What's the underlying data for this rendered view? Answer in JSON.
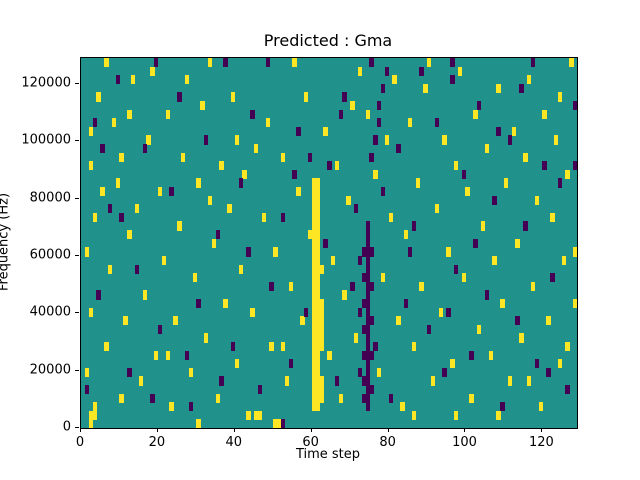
{
  "chart_data": {
    "type": "heatmap",
    "title": "Predicted : Gma",
    "xlabel": "Time step",
    "ylabel": "Frequency (Hz)",
    "x_range": [
      0,
      129
    ],
    "y_range": [
      0,
      129000
    ],
    "x_ticks": [
      0,
      20,
      40,
      60,
      80,
      100,
      120
    ],
    "y_ticks": [
      0,
      20000,
      40000,
      60000,
      80000,
      100000,
      120000
    ],
    "grid": {
      "x_steps": 129,
      "freq_bins": 43,
      "bin_hz": 3000,
      "gridlines": "off"
    },
    "legend": "none",
    "colors": {
      "background": "#21918c",
      "positive": "#fde725",
      "negative": "#440154"
    },
    "yellow_cells": [
      [
        2,
        0
      ],
      [
        2,
        1
      ],
      [
        3,
        1
      ],
      [
        3,
        2
      ],
      [
        1,
        6
      ],
      [
        2,
        13
      ],
      [
        1,
        20
      ],
      [
        3,
        24
      ],
      [
        2,
        30
      ],
      [
        2,
        34
      ],
      [
        4,
        38
      ],
      [
        6,
        42
      ],
      [
        8,
        35
      ],
      [
        9,
        28
      ],
      [
        7,
        18
      ],
      [
        6,
        9
      ],
      [
        10,
        3
      ],
      [
        11,
        12
      ],
      [
        12,
        22
      ],
      [
        10,
        31
      ],
      [
        13,
        40
      ],
      [
        15,
        5
      ],
      [
        16,
        15
      ],
      [
        14,
        25
      ],
      [
        17,
        33
      ],
      [
        18,
        41
      ],
      [
        19,
        8
      ],
      [
        21,
        19
      ],
      [
        20,
        27
      ],
      [
        22,
        36
      ],
      [
        23,
        2
      ],
      [
        24,
        12
      ],
      [
        25,
        23
      ],
      [
        26,
        31
      ],
      [
        27,
        40
      ],
      [
        28,
        6
      ],
      [
        29,
        17
      ],
      [
        30,
        28
      ],
      [
        31,
        37
      ],
      [
        33,
        42
      ],
      [
        32,
        10
      ],
      [
        34,
        21
      ],
      [
        35,
        3
      ],
      [
        36,
        30
      ],
      [
        37,
        14
      ],
      [
        38,
        25
      ],
      [
        39,
        38
      ],
      [
        40,
        7
      ],
      [
        41,
        18
      ],
      [
        42,
        29
      ],
      [
        43,
        1
      ],
      [
        44,
        13
      ],
      [
        45,
        1
      ],
      [
        46,
        1
      ],
      [
        47,
        24
      ],
      [
        48,
        35
      ],
      [
        49,
        9
      ],
      [
        50,
        0
      ],
      [
        51,
        0
      ],
      [
        50,
        20
      ],
      [
        52,
        31
      ],
      [
        53,
        5
      ],
      [
        54,
        16
      ],
      [
        55,
        42
      ],
      [
        56,
        27
      ],
      [
        57,
        12
      ],
      [
        58,
        38
      ],
      [
        59,
        22
      ],
      [
        63,
        34
      ],
      [
        64,
        8
      ],
      [
        65,
        19
      ],
      [
        66,
        30
      ],
      [
        67,
        3
      ],
      [
        68,
        15
      ],
      [
        69,
        26
      ],
      [
        70,
        37
      ],
      [
        71,
        10
      ],
      [
        72,
        41
      ],
      [
        76,
        29
      ],
      [
        77,
        6
      ],
      [
        78,
        17
      ],
      [
        79,
        33
      ],
      [
        80,
        24
      ],
      [
        81,
        40
      ],
      [
        82,
        12
      ],
      [
        83,
        2
      ],
      [
        84,
        22
      ],
      [
        85,
        35
      ],
      [
        86,
        9
      ],
      [
        87,
        28
      ],
      [
        88,
        16
      ],
      [
        89,
        39
      ],
      [
        90,
        42
      ],
      [
        91,
        5
      ],
      [
        92,
        25
      ],
      [
        93,
        13
      ],
      [
        94,
        33
      ],
      [
        95,
        20
      ],
      [
        96,
        7
      ],
      [
        97,
        30
      ],
      [
        98,
        41
      ],
      [
        99,
        17
      ],
      [
        100,
        27
      ],
      [
        101,
        3
      ],
      [
        102,
        36
      ],
      [
        103,
        11
      ],
      [
        104,
        23
      ],
      [
        105,
        32
      ],
      [
        106,
        8
      ],
      [
        107,
        19
      ],
      [
        108,
        39
      ],
      [
        109,
        14
      ],
      [
        110,
        28
      ],
      [
        111,
        5
      ],
      [
        112,
        34
      ],
      [
        113,
        21
      ],
      [
        114,
        10
      ],
      [
        115,
        31
      ],
      [
        116,
        40
      ],
      [
        117,
        16
      ],
      [
        118,
        26
      ],
      [
        119,
        2
      ],
      [
        120,
        36
      ],
      [
        121,
        12
      ],
      [
        122,
        24
      ],
      [
        123,
        33
      ],
      [
        124,
        7
      ],
      [
        125,
        19
      ],
      [
        126,
        29
      ],
      [
        127,
        42
      ],
      [
        128,
        14
      ],
      [
        126,
        9
      ],
      [
        124,
        38
      ],
      [
        5,
        27
      ],
      [
        45,
        32
      ],
      [
        33,
        26
      ],
      [
        62,
        18
      ],
      [
        74,
        36
      ],
      [
        128,
        20
      ],
      [
        116,
        5
      ],
      [
        108,
        1
      ],
      [
        86,
        1
      ],
      [
        97,
        1
      ],
      [
        30,
        0
      ],
      [
        22,
        8
      ],
      [
        12,
        36
      ],
      [
        52,
        9
      ],
      [
        40,
        33
      ]
    ],
    "dark_cells": [
      [
        1,
        4
      ],
      [
        4,
        15
      ],
      [
        3,
        35
      ],
      [
        7,
        25
      ],
      [
        9,
        40
      ],
      [
        12,
        6
      ],
      [
        14,
        18
      ],
      [
        16,
        32
      ],
      [
        19,
        42
      ],
      [
        20,
        11
      ],
      [
        23,
        27
      ],
      [
        25,
        38
      ],
      [
        28,
        2
      ],
      [
        30,
        14
      ],
      [
        32,
        33
      ],
      [
        35,
        22
      ],
      [
        37,
        42
      ],
      [
        39,
        9
      ],
      [
        41,
        28
      ],
      [
        44,
        36
      ],
      [
        46,
        4
      ],
      [
        48,
        42
      ],
      [
        49,
        16
      ],
      [
        52,
        24
      ],
      [
        54,
        7
      ],
      [
        56,
        34
      ],
      [
        58,
        13
      ],
      [
        63,
        21
      ],
      [
        64,
        30
      ],
      [
        66,
        5
      ],
      [
        68,
        38
      ],
      [
        70,
        16
      ],
      [
        75,
        42
      ],
      [
        76,
        9
      ],
      [
        78,
        27
      ],
      [
        80,
        3
      ],
      [
        82,
        32
      ],
      [
        84,
        14
      ],
      [
        86,
        23
      ],
      [
        88,
        41
      ],
      [
        90,
        11
      ],
      [
        92,
        35
      ],
      [
        94,
        6
      ],
      [
        96,
        42
      ],
      [
        97,
        18
      ],
      [
        99,
        29
      ],
      [
        101,
        8
      ],
      [
        103,
        37
      ],
      [
        105,
        15
      ],
      [
        107,
        26
      ],
      [
        109,
        2
      ],
      [
        111,
        33
      ],
      [
        113,
        12
      ],
      [
        115,
        23
      ],
      [
        117,
        42
      ],
      [
        118,
        7
      ],
      [
        120,
        30
      ],
      [
        122,
        17
      ],
      [
        124,
        28
      ],
      [
        126,
        4
      ],
      [
        128,
        37
      ],
      [
        10,
        24
      ],
      [
        27,
        8
      ],
      [
        55,
        29
      ],
      [
        85,
        20
      ],
      [
        108,
        34
      ],
      [
        36,
        5
      ],
      [
        59,
        31
      ],
      [
        71,
        25
      ],
      [
        95,
        13
      ],
      [
        52,
        0
      ],
      [
        73,
        3
      ],
      [
        73,
        5
      ],
      [
        73,
        8
      ],
      [
        73,
        11
      ],
      [
        73,
        14
      ],
      [
        73,
        17
      ],
      [
        73,
        20
      ],
      [
        75,
        4
      ],
      [
        75,
        8
      ],
      [
        75,
        12
      ],
      [
        75,
        16
      ],
      [
        75,
        20
      ],
      [
        72,
        6
      ],
      [
        72,
        13
      ],
      [
        72,
        19
      ],
      [
        75,
        31
      ],
      [
        76,
        33
      ],
      [
        77,
        35
      ],
      [
        77,
        37
      ],
      [
        78,
        39
      ],
      [
        79,
        41
      ],
      [
        96,
        40
      ],
      [
        128,
        30
      ],
      [
        5,
        32
      ],
      [
        18,
        3
      ],
      [
        43,
        20
      ],
      [
        67,
        36
      ],
      [
        102,
        21
      ],
      [
        114,
        39
      ],
      [
        121,
        6
      ]
    ],
    "bands": [
      {
        "x": 60,
        "bins": [
          2,
          28
        ],
        "color": "positive"
      },
      {
        "x": 61,
        "bins": [
          2,
          28
        ],
        "color": "positive"
      },
      {
        "x": 62,
        "bins": [
          9,
          14
        ],
        "color": "positive"
      },
      {
        "x": 62,
        "bins": [
          3,
          5
        ],
        "color": "positive"
      },
      {
        "x": 74,
        "bins": [
          2,
          23
        ],
        "color": "negative"
      }
    ]
  }
}
